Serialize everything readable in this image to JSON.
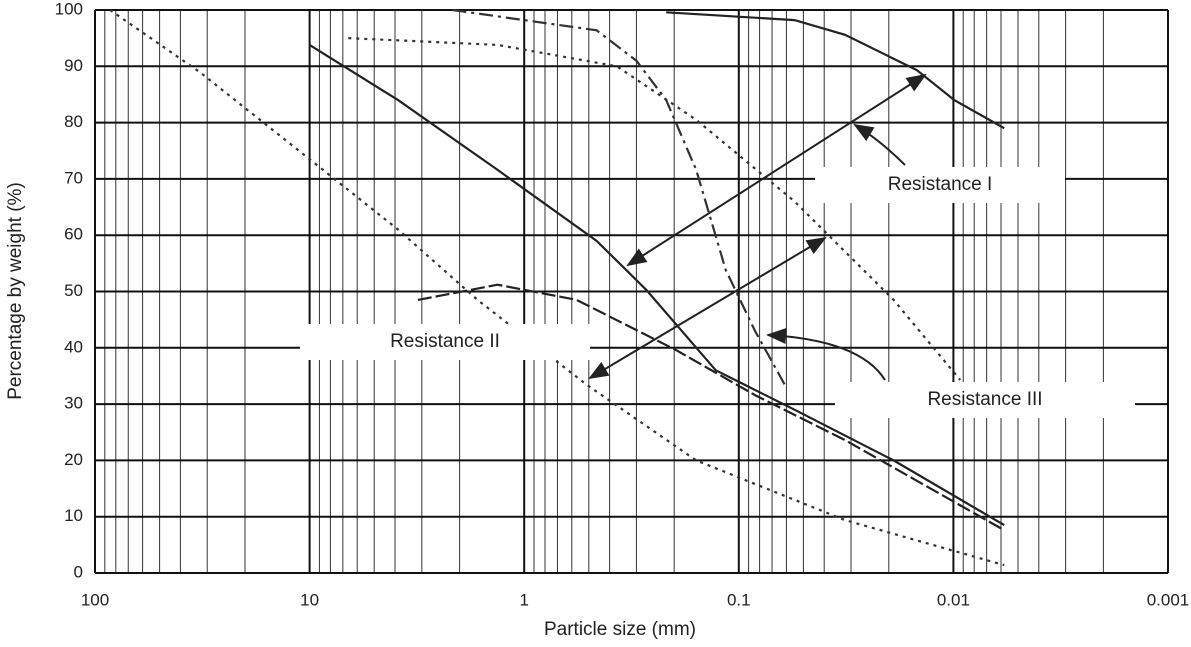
{
  "chart_data": {
    "type": "line",
    "x_label": "Particle size  (mm)",
    "y_label": "Percentage by weight  (%)",
    "x_log": true,
    "grid": true,
    "xlim": [
      100,
      0.001
    ],
    "xticks": [
      100,
      10,
      1,
      0.1,
      0.01,
      0.001
    ],
    "ylim": [
      0,
      100
    ],
    "yticks": [
      0,
      10,
      20,
      30,
      40,
      50,
      60,
      70,
      80,
      90,
      100
    ],
    "annotations": [
      "Resistance I",
      "Resistance II",
      "Resistance III"
    ],
    "series": [
      {
        "color": "#333",
        "dash": "3,5",
        "x": [
          85,
          32.6,
          11.2,
          3.87,
          1.65,
          0.51,
          0.158,
          0.032,
          0.0058
        ],
        "values": [
          100,
          89,
          75,
          61,
          48.5,
          33.4,
          20,
          9.4,
          1.4
        ]
      },
      {
        "color": "#222",
        "dash": "none",
        "x": [
          10,
          3.87,
          1.33,
          0.46,
          0.27,
          0.128,
          0.055,
          0.019,
          0.0058
        ],
        "values": [
          93.8,
          84,
          71.6,
          59,
          50.3,
          36,
          29,
          20,
          8.5
        ]
      },
      {
        "color": "#222",
        "dash": "none",
        "x": [
          0.218,
          0.055,
          0.032,
          0.0148,
          0.0099,
          0.0058
        ],
        "values": [
          99.6,
          98.2,
          95.6,
          89.3,
          84,
          79
        ]
      },
      {
        "color": "#333",
        "dash": "14,5,3,5",
        "x": [
          2.16,
          0.46,
          0.3,
          0.218,
          0.158,
          0.115,
          0.084,
          0.061
        ],
        "values": [
          100,
          96.4,
          91,
          84,
          71.6,
          53.8,
          43,
          33.4
        ]
      },
      {
        "color": "#333",
        "dash": "3,5",
        "x": [
          6.6,
          1.33,
          0.37,
          0.158,
          0.055,
          0.019,
          0.0093
        ],
        "values": [
          95,
          93.8,
          90,
          80.5,
          66,
          48.5,
          34.3
        ]
      },
      {
        "color": "#222",
        "dash": "14,4",
        "x": [
          3.13,
          1.33,
          0.57,
          0.196,
          0.084,
          0.032,
          0.0058
        ],
        "values": [
          48.5,
          51.2,
          48.5,
          39.6,
          31.6,
          23.6,
          7.6
        ]
      }
    ]
  }
}
